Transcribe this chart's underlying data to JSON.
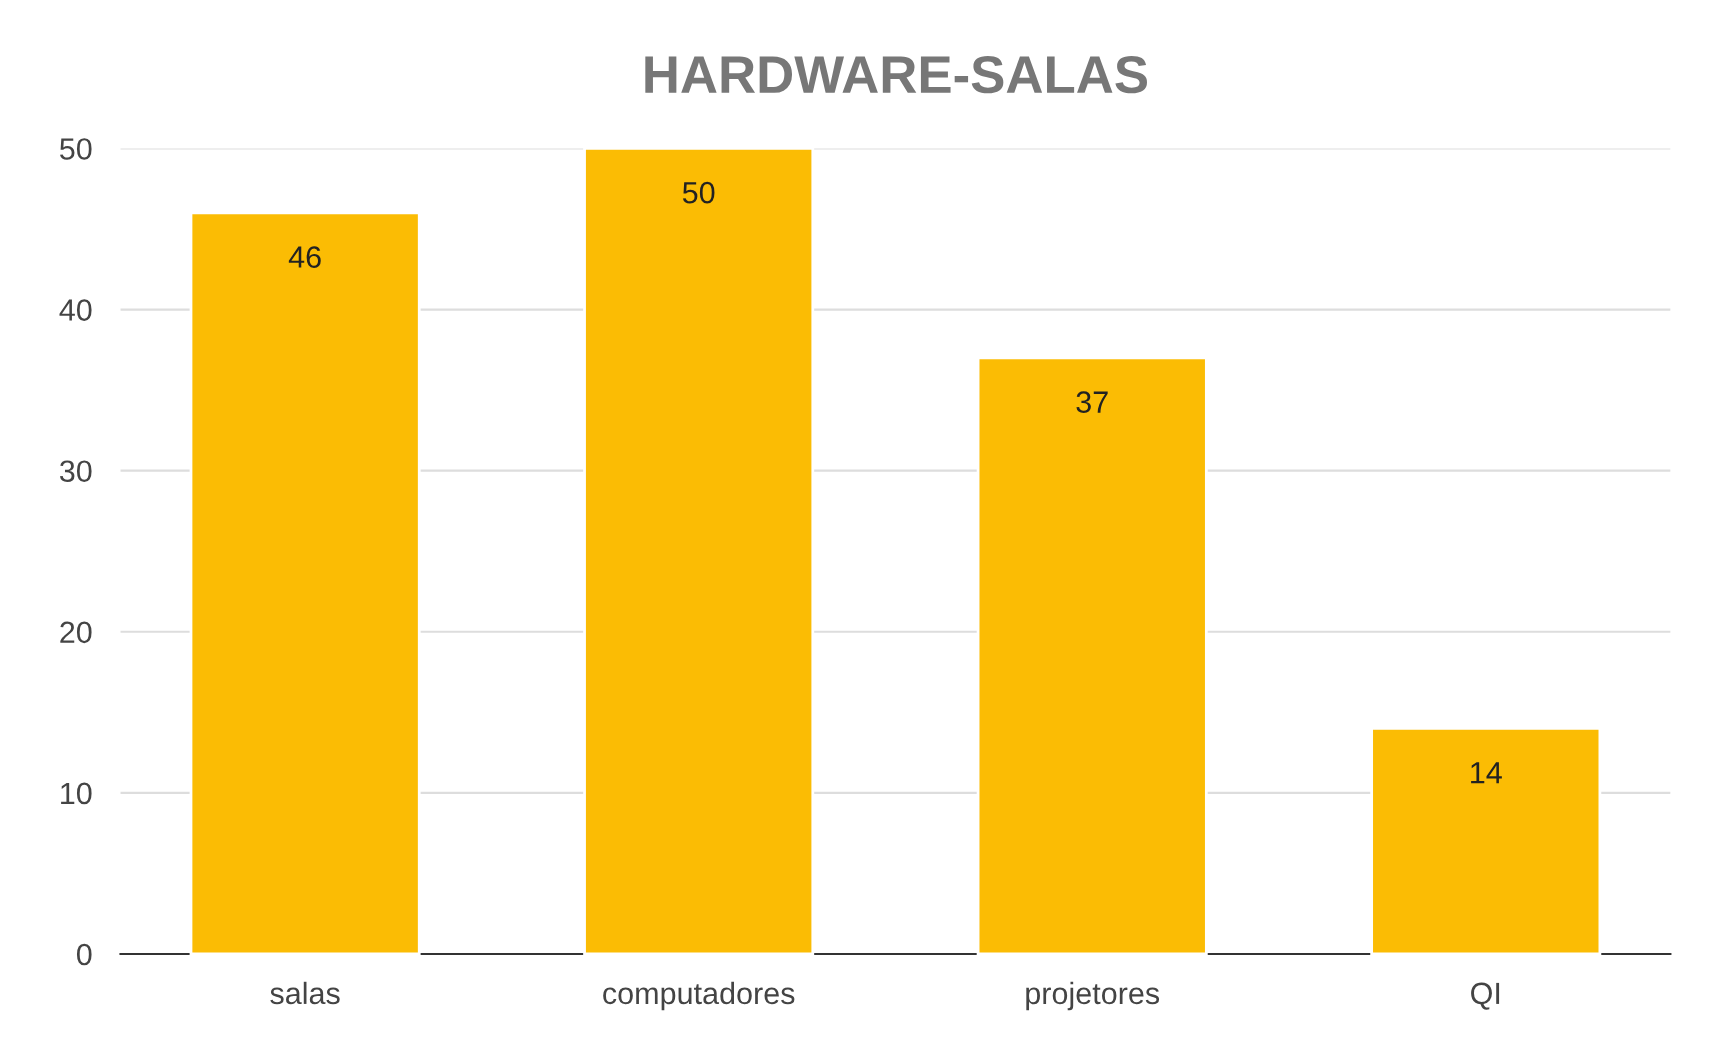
{
  "chart_data": {
    "type": "bar",
    "title": "HARDWARE-SALAS",
    "categories": [
      "salas",
      "computadores",
      "projetores",
      "QI"
    ],
    "values": [
      46,
      50,
      37,
      14
    ],
    "color": "#fbbc04",
    "ylim": [
      0,
      50
    ],
    "yticks": [
      0,
      10,
      20,
      30,
      40,
      50
    ],
    "grid": "y",
    "data_labels": true
  }
}
